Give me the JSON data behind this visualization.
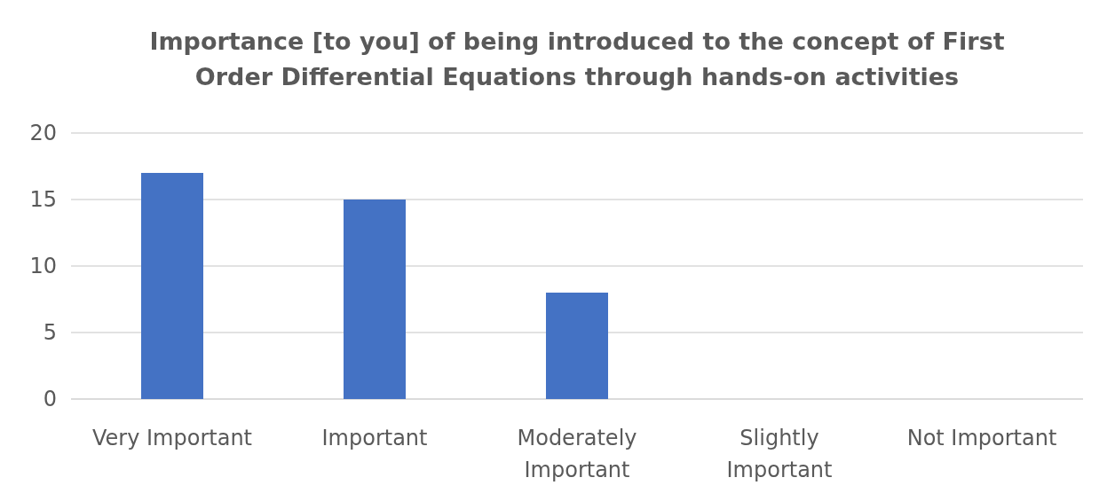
{
  "chart_data": {
    "type": "bar",
    "title": "Importance [to you] of being introduced to the concept of First Order Differential Equations through hands-on activities",
    "categories": [
      "Very Important",
      "Important",
      "Moderately Important",
      "Slightly Important",
      "Not Important"
    ],
    "values": [
      17,
      15,
      8,
      0,
      0
    ],
    "color": "#4472c4",
    "ylim": [
      0,
      20
    ],
    "yticks": [
      0,
      5,
      10,
      15,
      20
    ],
    "grid": "y"
  }
}
